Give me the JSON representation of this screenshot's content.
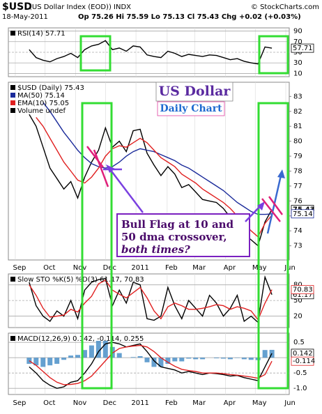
{
  "header": {
    "symbol": "$USD",
    "name": "(US Dollar Index (EOD)) INDX",
    "date": "18-May-2011",
    "quote": "Op 75.26  Hi 75.59  Lo 75.13  Cl 75.43  Chg +0.02 (+0.03%)",
    "source": "© StockCharts.com"
  },
  "x_axis": {
    "x": [
      2,
      3,
      4,
      5,
      6,
      7,
      8,
      9,
      10,
      11,
      12,
      13,
      14,
      15,
      16,
      17,
      18,
      19,
      20,
      21,
      22,
      23,
      24,
      25,
      26,
      27,
      28,
      29,
      30,
      31,
      32,
      33,
      34,
      35,
      36,
      37
    ],
    "xlim": [
      -1,
      39.5
    ],
    "xticks": [
      {
        "value": 0,
        "label": "Sep"
      },
      {
        "value": 4.3,
        "label": "Oct"
      },
      {
        "value": 8.7,
        "label": "Nov"
      },
      {
        "value": 13,
        "label": "Dec"
      },
      {
        "value": 17.4,
        "label": "2011"
      },
      {
        "value": 21.9,
        "label": "Feb"
      },
      {
        "value": 25.9,
        "label": "Mar"
      },
      {
        "value": 30.3,
        "label": "Apr"
      },
      {
        "value": 34.6,
        "label": "May"
      },
      {
        "value": 39,
        "label": "Jun"
      }
    ]
  },
  "chart_data": [
    {
      "type": "line",
      "legend": [
        "RSI(14) 57.71"
      ],
      "ylim": [
        4,
        96
      ],
      "yticks": [
        10,
        30,
        50,
        70,
        90
      ],
      "grid": true,
      "series": [
        {
          "name": "RSI(14)",
          "color": "#000000",
          "tag": true,
          "values": [
            55,
            40,
            35,
            32,
            38,
            42,
            48,
            40,
            55,
            62,
            65,
            72,
            55,
            58,
            52,
            62,
            60,
            45,
            42,
            40,
            52,
            48,
            42,
            46,
            44,
            42,
            45,
            44,
            40,
            36,
            38,
            33,
            30,
            28,
            60,
            57.71
          ]
        }
      ]
    },
    {
      "type": "line",
      "legend": [
        "$USD (Daily) 75.43",
        "MA(50) 75.14",
        "EMA(10) 75.05",
        "Volume undef"
      ],
      "ylim": [
        72.05,
        83.95
      ],
      "yticks": [
        73,
        74,
        75,
        76,
        77,
        78,
        79,
        80,
        81,
        82,
        83
      ],
      "grid": false,
      "series": [
        {
          "name": "$USD (Daily)",
          "color": "#000000",
          "tag": true,
          "values": [
            81.8,
            81.0,
            79.6,
            78.2,
            77.5,
            76.8,
            77.3,
            76.2,
            77.6,
            78.6,
            79.4,
            80.9,
            79.6,
            80.0,
            79.3,
            80.7,
            80.8,
            79.2,
            78.4,
            77.7,
            78.3,
            77.8,
            76.9,
            77.1,
            76.6,
            76.1,
            76.0,
            75.9,
            75.5,
            74.9,
            74.5,
            73.8,
            73.4,
            73.0,
            74.6,
            75.43
          ]
        },
        {
          "name": "MA(50)",
          "color": "#1a2a9a",
          "tag": true,
          "values": [
            null,
            null,
            82.6,
            82.0,
            81.3,
            80.6,
            80.0,
            79.4,
            78.9,
            78.5,
            78.3,
            78.2,
            78.3,
            78.6,
            79.0,
            79.3,
            79.5,
            79.4,
            79.3,
            79.1,
            78.9,
            78.7,
            78.4,
            78.2,
            77.9,
            77.6,
            77.3,
            77.0,
            76.7,
            76.3,
            75.9,
            75.6,
            75.3,
            75.1,
            75.1,
            75.14
          ]
        },
        {
          "name": "EMA(10)",
          "color": "#e02020",
          "values": [
            null,
            81.6,
            81.0,
            80.2,
            79.4,
            78.6,
            78.0,
            77.4,
            77.2,
            77.6,
            78.2,
            79.0,
            79.5,
            79.7,
            79.6,
            79.9,
            80.2,
            79.9,
            79.4,
            78.9,
            78.6,
            78.3,
            77.8,
            77.5,
            77.2,
            76.8,
            76.5,
            76.2,
            75.9,
            75.5,
            75.0,
            74.5,
            74.0,
            73.6,
            74.5,
            75.05
          ]
        }
      ],
      "annotations": {
        "title": "US Dollar",
        "subtitle": "Daily Chart",
        "note": [
          "Bull Flag at 10 and",
          "50 dma crossover,",
          "both times?"
        ]
      }
    },
    {
      "type": "line",
      "legend": [
        "Slow STO %K(5) %D(3) 61.17, 70.83"
      ],
      "ylim": [
        -2,
        101
      ],
      "yticks": [
        20,
        50,
        80
      ],
      "grid": true,
      "series": [
        {
          "name": "%K(5)",
          "color": "#000000",
          "tag": true,
          "values": [
            85,
            40,
            20,
            10,
            30,
            20,
            50,
            15,
            70,
            85,
            90,
            92,
            40,
            70,
            45,
            85,
            80,
            15,
            12,
            20,
            75,
            40,
            15,
            50,
            35,
            20,
            60,
            45,
            20,
            35,
            60,
            10,
            20,
            8,
            95,
            61.17
          ]
        },
        {
          "name": "%D(3)",
          "color": "#e02020",
          "tag": true,
          "values": [
            80,
            60,
            35,
            18,
            20,
            22,
            33,
            28,
            45,
            58,
            82,
            89,
            70,
            62,
            55,
            65,
            75,
            55,
            30,
            15,
            38,
            45,
            40,
            33,
            33,
            35,
            38,
            42,
            40,
            33,
            38,
            35,
            30,
            13,
            45,
            70.83
          ]
        }
      ]
    },
    {
      "type": "line",
      "legend": [
        "MACD(12,26,9) 0.142, -0.114, 0.255"
      ],
      "ylim": [
        -1.2,
        0.8
      ],
      "yticks": [
        0.5,
        {
          "value": 0,
          "label": "0.0"
        },
        -0.5,
        {
          "value": -1,
          "label": "-1.0"
        }
      ],
      "grid": true,
      "series": [
        {
          "name": "Histogram",
          "color": "#4a8fc8",
          "kind": "bars",
          "values": [
            -0.2,
            -0.25,
            -0.3,
            -0.25,
            -0.2,
            -0.07,
            0.07,
            0.09,
            0.25,
            0.4,
            0.55,
            0.55,
            0.35,
            0.15,
            0.0,
            0.02,
            0.05,
            -0.15,
            -0.3,
            -0.3,
            -0.2,
            -0.12,
            -0.12,
            -0.03,
            -0.05,
            -0.05,
            0.0,
            -0.02,
            -0.03,
            -0.05,
            -0.01,
            -0.05,
            -0.07,
            -0.08,
            0.25,
            0.255
          ]
        },
        {
          "name": "MACD",
          "color": "#000000",
          "tag": true,
          "values": [
            -0.3,
            -0.5,
            -0.75,
            -0.9,
            -1.0,
            -0.95,
            -0.8,
            -0.75,
            -0.5,
            -0.2,
            0.2,
            0.45,
            0.5,
            0.45,
            0.35,
            0.4,
            0.45,
            0.2,
            -0.1,
            -0.3,
            -0.35,
            -0.4,
            -0.5,
            -0.45,
            -0.5,
            -0.55,
            -0.5,
            -0.52,
            -0.55,
            -0.6,
            -0.58,
            -0.65,
            -0.7,
            -0.75,
            -0.3,
            0.142
          ]
        },
        {
          "name": "Signal",
          "color": "#e02020",
          "tag": true,
          "values": [
            -0.1,
            -0.25,
            -0.45,
            -0.65,
            -0.8,
            -0.88,
            -0.87,
            -0.84,
            -0.75,
            -0.6,
            -0.35,
            -0.1,
            0.15,
            0.3,
            0.35,
            0.38,
            0.4,
            0.35,
            0.2,
            0.0,
            -0.15,
            -0.28,
            -0.38,
            -0.42,
            -0.45,
            -0.5,
            -0.5,
            -0.5,
            -0.52,
            -0.55,
            -0.57,
            -0.6,
            -0.63,
            -0.67,
            -0.55,
            -0.114
          ]
        }
      ]
    }
  ]
}
